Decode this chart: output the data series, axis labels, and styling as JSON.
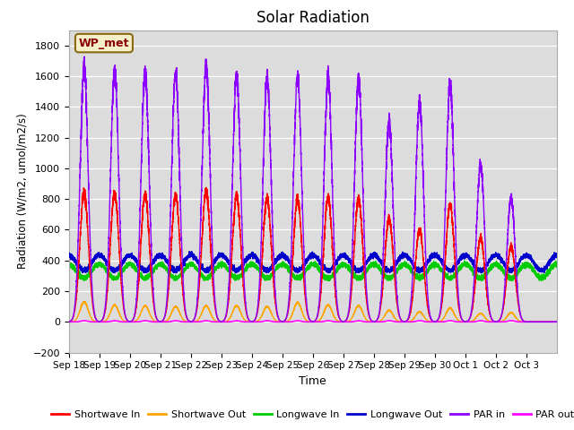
{
  "title": "Solar Radiation",
  "xlabel": "Time",
  "ylabel": "Radiation (W/m2, umol/m2/s)",
  "ylim": [
    -200,
    1900
  ],
  "yticks": [
    -200,
    0,
    200,
    400,
    600,
    800,
    1000,
    1200,
    1400,
    1600,
    1800
  ],
  "bg_color": "#dcdcdc",
  "fig_color": "#ffffff",
  "annotation_text": "WP_met",
  "annotation_bg": "#f5f0c8",
  "annotation_border": "#8b6914",
  "annotation_text_color": "#8b0000",
  "n_days": 16,
  "series": {
    "Shortwave In": {
      "color": "#ff0000"
    },
    "Shortwave Out": {
      "color": "#ffa500"
    },
    "Longwave In": {
      "color": "#00cc00"
    },
    "Longwave Out": {
      "color": "#0000cc"
    },
    "PAR in": {
      "color": "#8b00ff"
    },
    "PAR out": {
      "color": "#ff00ff"
    }
  },
  "x_tick_labels": [
    "Sep 18",
    "Sep 19",
    "Sep 20",
    "Sep 21",
    "Sep 22",
    "Sep 23",
    "Sep 24",
    "Sep 25",
    "Sep 26",
    "Sep 27",
    "Sep 28",
    "Sep 29",
    "Sep 30",
    "Oct 1",
    "Oct 2",
    "Oct 3"
  ],
  "x_tick_positions": [
    0,
    1,
    2,
    3,
    4,
    5,
    6,
    7,
    8,
    9,
    10,
    11,
    12,
    13,
    14,
    15
  ],
  "sw_in_peaks": [
    840,
    840,
    830,
    820,
    850,
    820,
    810,
    800,
    810,
    800,
    670,
    600,
    760,
    550,
    490,
    0
  ],
  "sw_out_peaks": [
    130,
    110,
    105,
    100,
    105,
    105,
    100,
    125,
    110,
    105,
    75,
    65,
    90,
    55,
    60,
    0
  ],
  "par_in_peaks": [
    1660,
    1640,
    1620,
    1620,
    1660,
    1600,
    1590,
    1600,
    1590,
    1580,
    1300,
    1430,
    1540,
    1020,
    810,
    0
  ],
  "lw_in_base": 330,
  "lw_out_base": 385,
  "lw_in_amp": 45,
  "lw_out_amp": 50
}
